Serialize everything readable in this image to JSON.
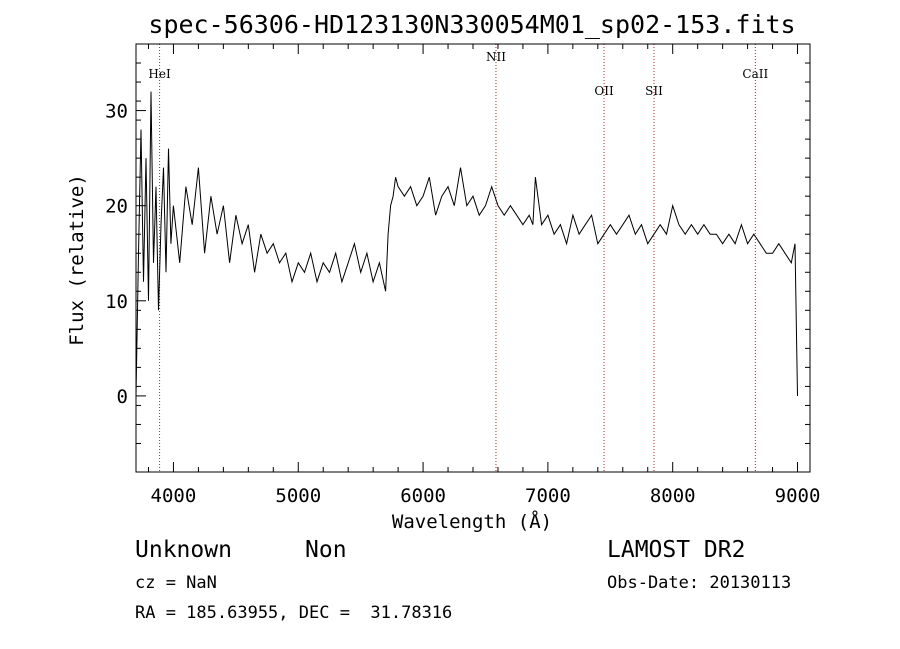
{
  "chart_data": {
    "type": "line",
    "title": "spec-56306-HD123130N330054M01_sp02-153.fits",
    "xlabel": "Wavelength (Å)",
    "ylabel": "Flux (relative)",
    "xlim": [
      3700,
      9100
    ],
    "ylim": [
      -8,
      37
    ],
    "xticks": [
      4000,
      5000,
      6000,
      7000,
      8000,
      9000
    ],
    "yticks": [
      0,
      10,
      20,
      30
    ],
    "grid": false,
    "lines": [
      {
        "name": "HeI",
        "x": 3889
      },
      {
        "name": "NII",
        "x": 6584
      },
      {
        "name": "OII",
        "x": 7450
      },
      {
        "name": "SII",
        "x": 7850
      },
      {
        "name": "CaII",
        "x": 8662
      }
    ],
    "series": [
      {
        "x": [
          3700,
          3720,
          3740,
          3760,
          3780,
          3800,
          3820,
          3840,
          3860,
          3880,
          3900,
          3920,
          3940,
          3960,
          3980,
          4000,
          4050,
          4100,
          4150,
          4200,
          4250,
          4300,
          4350,
          4400,
          4450,
          4500,
          4550,
          4600,
          4650,
          4700,
          4750,
          4800,
          4850,
          4900,
          4950,
          5000,
          5050,
          5100,
          5150,
          5200,
          5250,
          5300,
          5350,
          5400,
          5450,
          5500,
          5550,
          5600,
          5650,
          5700,
          5720,
          5740,
          5760,
          5780,
          5800,
          5850,
          5900,
          5950,
          6000,
          6050,
          6100,
          6150,
          6200,
          6250,
          6300,
          6350,
          6400,
          6450,
          6500,
          6550,
          6600,
          6650,
          6700,
          6750,
          6800,
          6850,
          6880,
          6900,
          6950,
          7000,
          7050,
          7100,
          7150,
          7200,
          7250,
          7300,
          7350,
          7400,
          7450,
          7500,
          7550,
          7600,
          7650,
          7700,
          7750,
          7800,
          7850,
          7900,
          7950,
          8000,
          8050,
          8100,
          8150,
          8200,
          8250,
          8300,
          8350,
          8400,
          8450,
          8500,
          8550,
          8600,
          8650,
          8700,
          8750,
          8800,
          8850,
          8900,
          8950,
          8980,
          9000
        ],
        "y": [
          0,
          15,
          28,
          12,
          25,
          10,
          32,
          14,
          22,
          9,
          18,
          24,
          13,
          26,
          16,
          20,
          14,
          22,
          18,
          24,
          15,
          21,
          17,
          20,
          14,
          19,
          16,
          18,
          13,
          17,
          15,
          16,
          14,
          15,
          12,
          14,
          13,
          15,
          12,
          14,
          13,
          15,
          12,
          14,
          16,
          13,
          15,
          12,
          14,
          11,
          17,
          20,
          21,
          23,
          22,
          21,
          22,
          20,
          21,
          23,
          19,
          21,
          22,
          20,
          24,
          20,
          21,
          19,
          20,
          22,
          20,
          19,
          20,
          19,
          18,
          19,
          18,
          23,
          18,
          19,
          17,
          18,
          16,
          19,
          17,
          18,
          19,
          16,
          17,
          18,
          17,
          18,
          19,
          17,
          18,
          16,
          17,
          18,
          17,
          20,
          18,
          17,
          18,
          17,
          18,
          17,
          17,
          16,
          17,
          16,
          18,
          16,
          17,
          16,
          15,
          15,
          16,
          15,
          14,
          16,
          0
        ]
      }
    ]
  },
  "info": {
    "class_label": "Unknown",
    "subclass_label": "Non",
    "survey": "LAMOST DR2",
    "cz": "cz = NaN",
    "obs_date": "Obs-Date: 20130113",
    "radec": "RA = 185.63955, DEC =  31.78316"
  }
}
